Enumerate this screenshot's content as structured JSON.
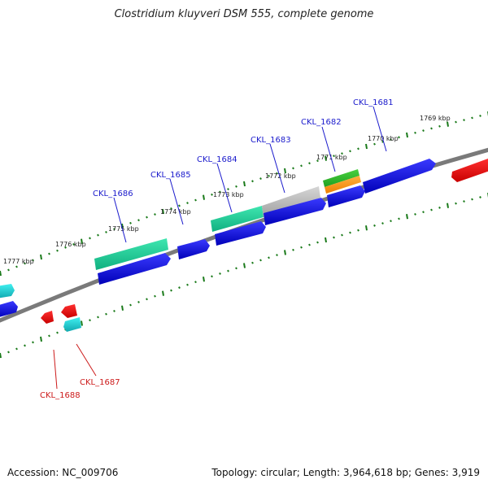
{
  "title": "Clostridium kluyveri DSM 555, complete genome",
  "footer": {
    "accession": "Accession: NC_009706",
    "summary": "Topology: circular; Length: 3,964,618 bp; Genes: 3,919"
  },
  "scale_labels": [
    "1777 kbp",
    "1776 kbp",
    "1775 kbp",
    "1774 kbp",
    "1773 kbp",
    "1772 kbp",
    "1771 kbp",
    "1770 kbp",
    "1769 kbp"
  ],
  "gene_labels_forward": [
    "CKL_1686",
    "CKL_1685",
    "CKL_1684",
    "CKL_1683",
    "CKL_1682",
    "CKL_1681"
  ],
  "gene_labels_reverse": [
    "CKL_1688",
    "CKL_1687"
  ],
  "colors": {
    "forward_label": "#1a1acc",
    "reverse_label": "#cc1a1a",
    "cds": "#0a0ad8",
    "rna": "#28e0a0",
    "pseudo": "#b8b8b8",
    "reverse_feature": "#e00000",
    "tick": "#1a7a1a"
  }
}
